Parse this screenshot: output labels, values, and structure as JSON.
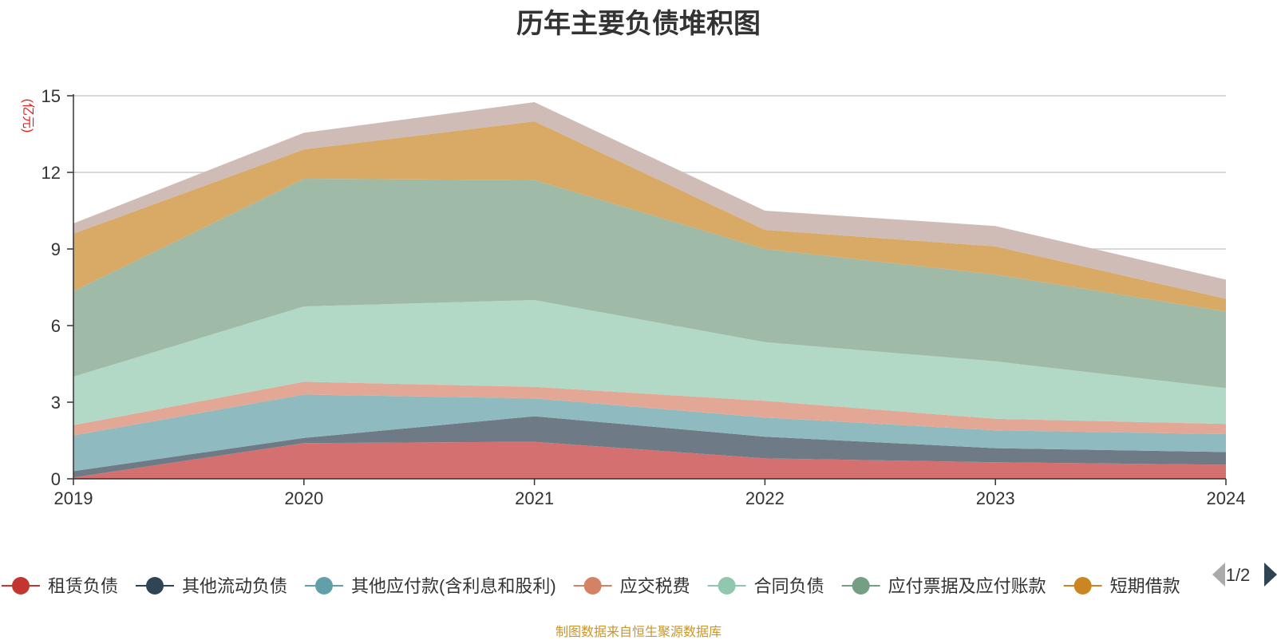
{
  "title": "历年主要负债堆积图",
  "unit_label": "(亿元)",
  "source": "制图数据来自恒生聚源数据库",
  "legend_page": "1/2",
  "chart_data": {
    "type": "area",
    "stacked": true,
    "x": [
      "2019",
      "2020",
      "2021",
      "2022",
      "2023",
      "2024"
    ],
    "ylim": [
      0,
      15
    ],
    "yticks": [
      0,
      3,
      6,
      9,
      12,
      15
    ],
    "ylabel": "(亿元)",
    "grid": true,
    "legend_position": "bottom",
    "series": [
      {
        "name": "租赁负债",
        "color": "#c23531",
        "fill": "#d4706f",
        "values": [
          0.05,
          1.4,
          1.45,
          0.8,
          0.65,
          0.55
        ]
      },
      {
        "name": "其他流动负债",
        "color": "#2f4554",
        "fill": "#6e7b86",
        "values": [
          0.25,
          0.2,
          1.0,
          0.85,
          0.55,
          0.5
        ]
      },
      {
        "name": "其他应付款(含利息和股利)",
        "color": "#61a0a8",
        "fill": "#8fbbc0",
        "values": [
          1.4,
          1.7,
          0.7,
          0.75,
          0.7,
          0.7
        ]
      },
      {
        "name": "应交税费",
        "color": "#d48265",
        "fill": "#e3a795",
        "values": [
          0.4,
          0.5,
          0.45,
          0.65,
          0.45,
          0.4
        ]
      },
      {
        "name": "合同负债",
        "color": "#91c7ae",
        "fill": "#b2d8c6",
        "values": [
          1.9,
          2.95,
          3.4,
          2.3,
          2.25,
          1.4
        ]
      },
      {
        "name": "应付票据及应付账款",
        "color": "#749f83",
        "fill": "#9fbaa7",
        "values": [
          3.35,
          5.0,
          4.7,
          3.65,
          3.4,
          3.0
        ]
      },
      {
        "name": "短期借款",
        "color": "#ca8622",
        "fill": "#d9aa66",
        "values": [
          2.25,
          1.15,
          2.3,
          0.75,
          1.1,
          0.5
        ]
      },
      {
        "name": "",
        "color": "#bda29a",
        "fill": "#d0bcb7",
        "values": [
          0.4,
          0.65,
          0.75,
          0.75,
          0.8,
          0.75
        ]
      }
    ]
  }
}
